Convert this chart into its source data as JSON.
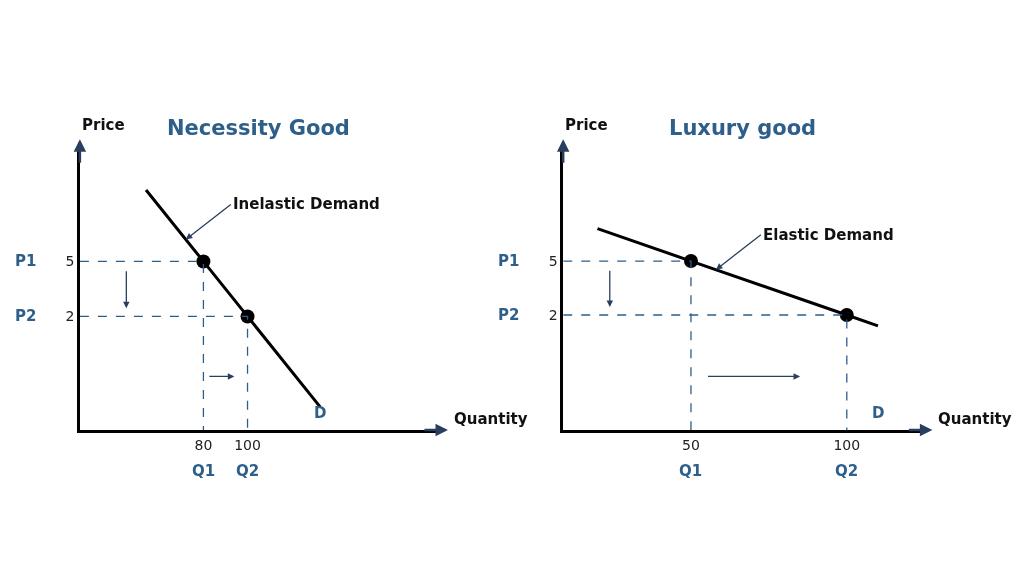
{
  "chart_data": [
    {
      "type": "line",
      "title": "Necessity Good",
      "xlabel": "Quantity",
      "ylabel": "Price",
      "xlim": [
        24,
        186
      ],
      "ylim": [
        -4.2,
        11.2
      ],
      "xticks": [
        80,
        100
      ],
      "yticks": [
        5,
        2
      ],
      "series": [
        {
          "name": "D",
          "color": "#000000",
          "x": [
            54,
            80,
            100,
            133
          ],
          "values": [
            8.9,
            5,
            2,
            -2.95
          ],
          "marker": "none",
          "line_style": "solid"
        },
        {
          "type": "scatter",
          "color": "#000000",
          "x": [
            80,
            100
          ],
          "values": [
            5,
            2
          ],
          "marker": "circle"
        },
        {
          "color": "#2f5d8a",
          "x": [
            24,
            80,
            80
          ],
          "values": [
            5,
            5,
            -4.2
          ],
          "marker": "none",
          "line_style": "dashed"
        },
        {
          "color": "#2f5d8a",
          "x": [
            24,
            100,
            100
          ],
          "values": [
            2,
            2,
            -4.2
          ],
          "marker": "none",
          "line_style": "dashed"
        }
      ],
      "annotations": [
        {
          "text": "Inelastic Demand",
          "x": 72,
          "y": 6.2
        },
        {
          "text": "P1",
          "x": 24,
          "y": 5
        },
        {
          "text": "P2",
          "x": 24,
          "y": 2
        },
        {
          "text": "Q1",
          "x": 80,
          "y": -4.2
        },
        {
          "text": "Q2",
          "x": 100,
          "y": -4.2
        }
      ],
      "legend": false
    },
    {
      "type": "line",
      "title": "Luxury good",
      "xlabel": "Quantity",
      "ylabel": "Price",
      "xlim": [
        9,
        124
      ],
      "ylim": [
        -4.4,
        11.3
      ],
      "xticks": [
        50,
        100
      ],
      "yticks": [
        5,
        2
      ],
      "series": [
        {
          "name": "D",
          "color": "#000000",
          "x": [
            20,
            50,
            100,
            110
          ],
          "values": [
            6.8,
            5,
            2,
            1.4
          ],
          "marker": "none",
          "line_style": "solid"
        },
        {
          "type": "scatter",
          "color": "#000000",
          "x": [
            50,
            100
          ],
          "values": [
            5,
            2
          ],
          "marker": "circle"
        },
        {
          "color": "#2f5d8a",
          "x": [
            9,
            50,
            50
          ],
          "values": [
            5,
            5,
            -4.4
          ],
          "marker": "none",
          "line_style": "dashed"
        },
        {
          "color": "#2f5d8a",
          "x": [
            9,
            100,
            100
          ],
          "values": [
            2,
            2,
            -4.4
          ],
          "marker": "none",
          "line_style": "dashed"
        }
      ],
      "annotations": [
        {
          "text": "Elastic Demand",
          "x": 58,
          "y": 4.52
        },
        {
          "text": "P1",
          "x": 9,
          "y": 5
        },
        {
          "text": "P2",
          "x": 9,
          "y": 2
        },
        {
          "text": "Q1",
          "x": 50,
          "y": -4.4
        },
        {
          "text": "Q2",
          "x": 100,
          "y": -4.4
        }
      ],
      "legend": false
    }
  ]
}
